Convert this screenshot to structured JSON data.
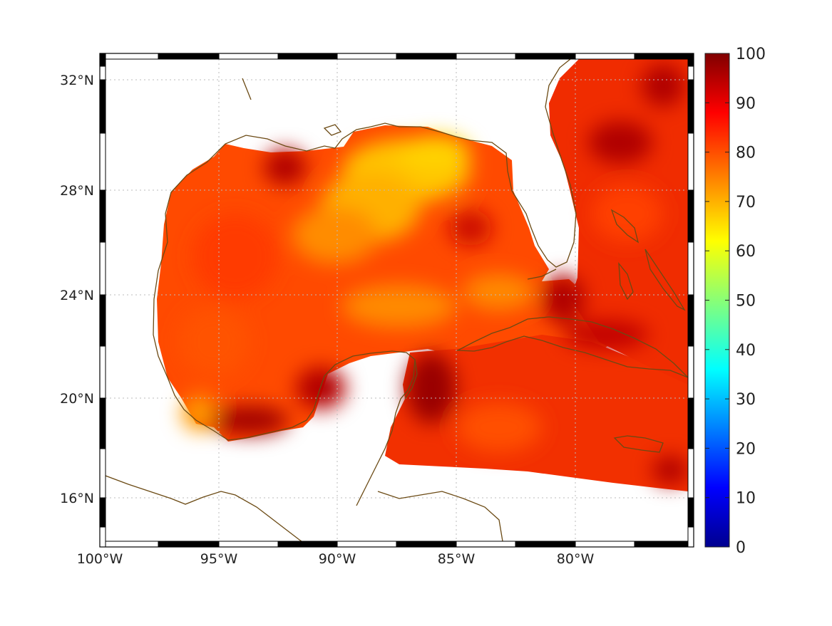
{
  "chart_data": {
    "type": "heatmap",
    "x_ticks": [
      "100°W",
      "95°W",
      "90°W",
      "85°W",
      "80°W"
    ],
    "y_ticks": [
      "32°N",
      "28°N",
      "24°N",
      "20°N",
      "16°N"
    ],
    "x_range_lon": [
      -100,
      -75
    ],
    "y_range_lat": [
      14.3,
      32.9
    ],
    "grid": true,
    "colorbar": {
      "range": [
        0,
        100
      ],
      "ticks": [
        "0",
        "10",
        "20",
        "30",
        "40",
        "50",
        "60",
        "70",
        "80",
        "90",
        "100"
      ],
      "colormap": "jet",
      "placement": "right"
    },
    "field_description_values": {
      "typical": 85,
      "min_visible": 65,
      "max_visible": 98
    },
    "colors": {
      "coastline": "#6b4a14",
      "grid": "#bbbbbb",
      "frame": "#000000",
      "ocean_low": "#f6c300",
      "ocean_mid": "#ff5a00",
      "ocean_high": "#c40000",
      "ocean_max": "#8a0000"
    }
  }
}
